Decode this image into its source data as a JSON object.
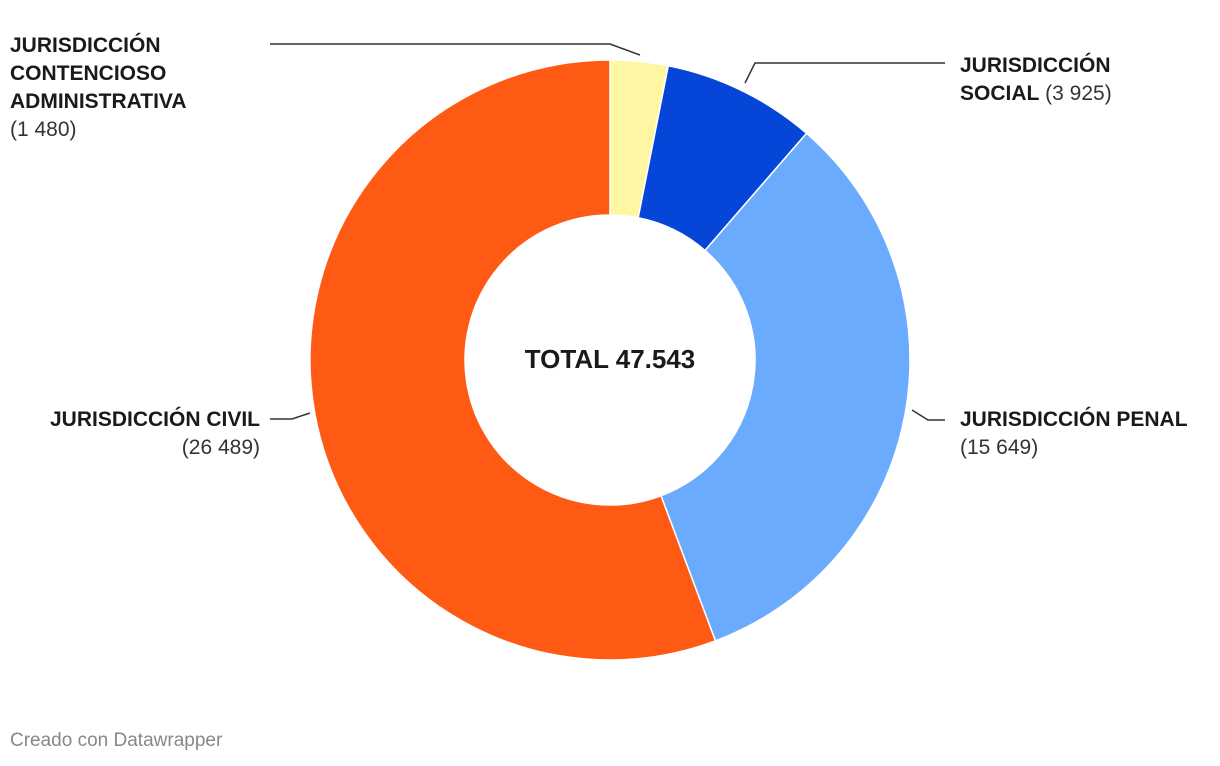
{
  "chart_data": {
    "type": "pie",
    "donut": true,
    "center_label": "TOTAL 47.543",
    "slices": [
      {
        "label_lines": [
          "JURISDICCIÓN",
          "CONTENCIOSO",
          "ADMINISTRATIVA"
        ],
        "value": 1480,
        "value_label": "(1 480)",
        "color": "#FFF6A3"
      },
      {
        "label_lines": [
          "JURISDICCIÓN",
          "SOCIAL"
        ],
        "value": 3925,
        "value_label": "(3 925)",
        "color": "#0545D8"
      },
      {
        "label_lines": [
          "JURISDICCIÓN PENAL"
        ],
        "value": 15649,
        "value_label": "(15 649)",
        "color": "#6AABFD"
      },
      {
        "label_lines": [
          "JURISDICCIÓN CIVIL"
        ],
        "value": 26489,
        "value_label": "(26 489)",
        "color": "#FF5A14"
      }
    ]
  },
  "footer": {
    "credit": "Creado con Datawrapper"
  }
}
